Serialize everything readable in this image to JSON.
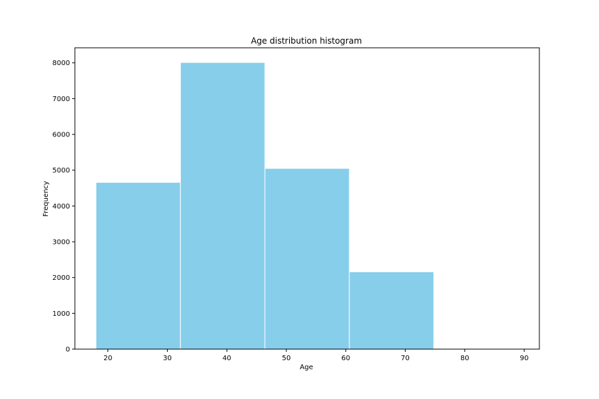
{
  "chart_data": {
    "type": "bar",
    "title": "Age distribution histogram",
    "xlabel": "Age",
    "ylabel": "Frequency",
    "bin_edges": [
      18,
      32.2,
      46.4,
      60.6,
      74.8,
      89
    ],
    "values": [
      4660,
      8010,
      5050,
      2160,
      20
    ],
    "xlim": [
      14.45,
      92.55
    ],
    "ylim": [
      0,
      8420
    ],
    "xticks": [
      20,
      30,
      40,
      50,
      60,
      70,
      80,
      90
    ],
    "yticks": [
      0,
      1000,
      2000,
      3000,
      4000,
      5000,
      6000,
      7000,
      8000
    ],
    "bar_color": "#87ceeb",
    "edge_color": "#ffffff",
    "grid": false
  }
}
